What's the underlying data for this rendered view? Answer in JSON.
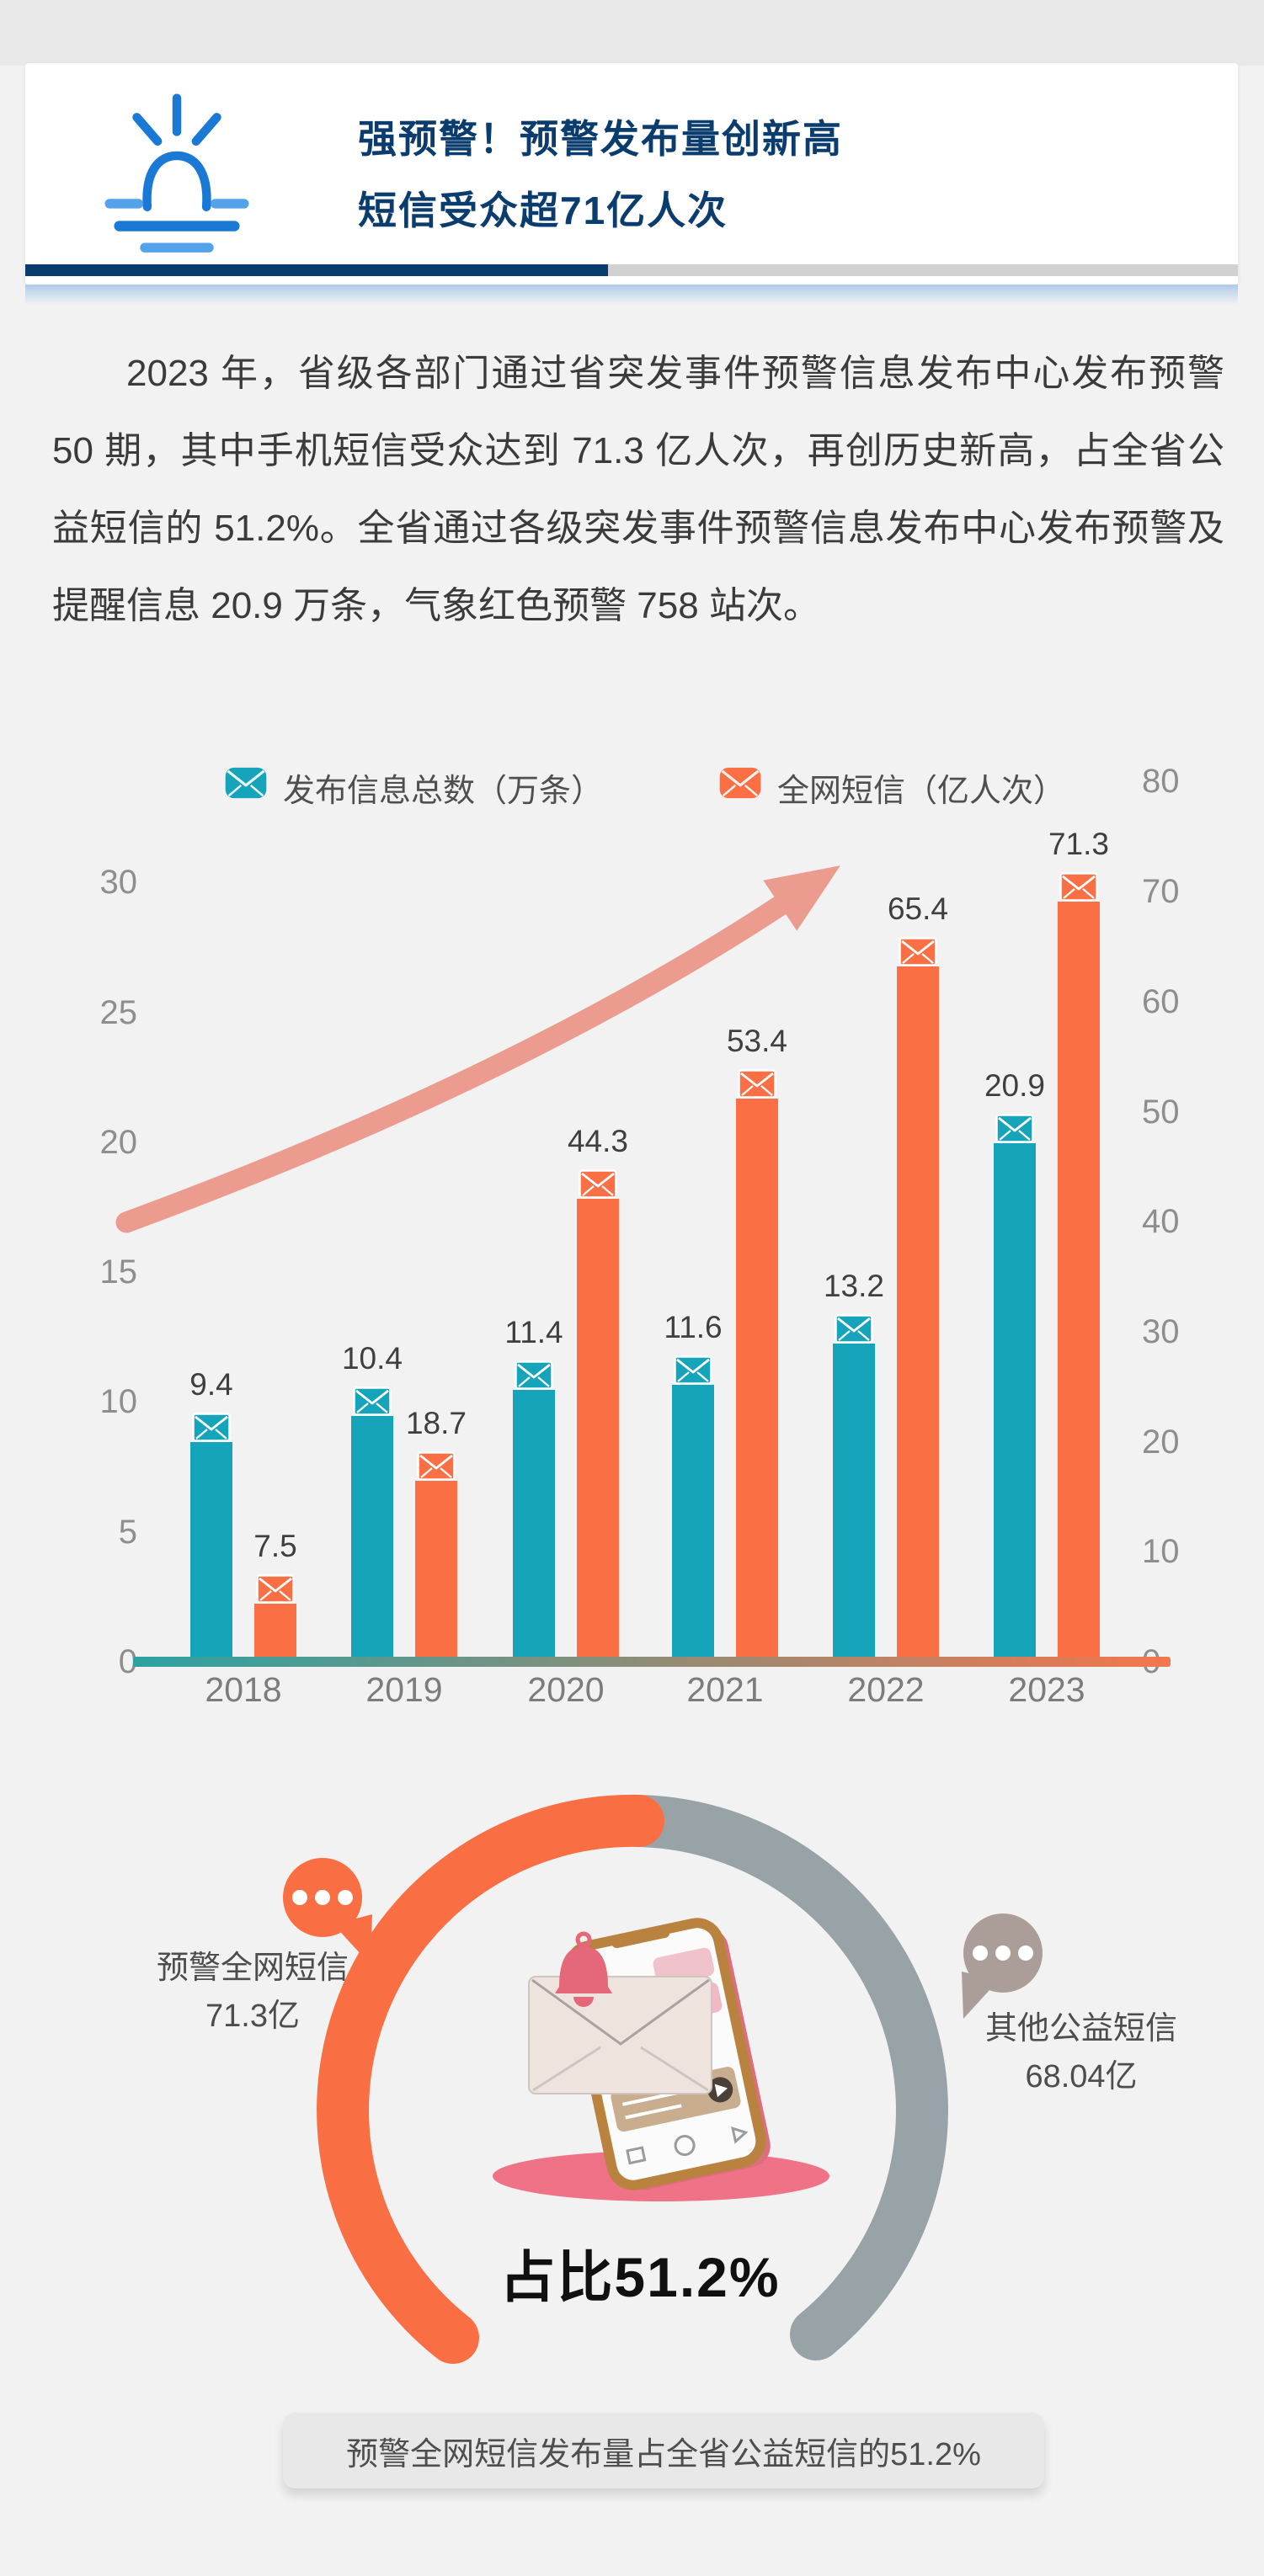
{
  "header": {
    "title_line1": "强预警！预警发布量创新高",
    "title_line2": "短信受众超71亿人次",
    "accent_navy": "#0A3C6E",
    "icon": "sunrise-icon"
  },
  "intro": {
    "text": "2023 年，省级各部门通过省突发事件预警信息发布中心发布预警 50 期，其中手机短信受众达到 71.3 亿人次，再创历史新高，占全省公益短信的 51.2%。全省通过各级突发事件预警信息发布中心发布预警及提醒信息 20.9 万条，气象红色预警 758 站次。"
  },
  "chart_data": {
    "type": "bar",
    "categories": [
      "2018",
      "2019",
      "2020",
      "2021",
      "2022",
      "2023"
    ],
    "series": [
      {
        "name": "发布信息总数（万条）",
        "axis": "left",
        "color": "#16A4BA",
        "icon": "envelope-icon",
        "values": [
          9.4,
          10.4,
          11.4,
          11.6,
          13.2,
          20.9
        ]
      },
      {
        "name": "全网短信（亿人次）",
        "axis": "right",
        "color": "#FA7044",
        "icon": "envelope-icon",
        "values": [
          7.5,
          18.7,
          44.3,
          53.4,
          65.4,
          71.3
        ]
      }
    ],
    "left_axis_ticks": [
      0,
      5,
      10,
      15,
      20,
      25,
      30
    ],
    "right_axis_ticks": [
      0,
      10,
      20,
      30,
      40,
      50,
      60,
      70,
      80
    ],
    "left_axis_range": [
      0,
      32
    ],
    "right_axis_range": [
      0,
      83
    ],
    "legend_position": "top",
    "grid": false,
    "trend_arrow": true,
    "trend_arrow_color": "#EC9C8E",
    "baseline_gradient": [
      "#2BA3A2",
      "#F4764C"
    ]
  },
  "donut": {
    "percent_label": "占比51.2%",
    "orange_value": 71.3,
    "gray_value": 68.04,
    "orange_label_line1": "预警全网短信",
    "orange_label_line2": "71.3亿",
    "gray_label_line1": "其他公益短信",
    "gray_label_line2": "68.04亿",
    "orange": "#F96F43",
    "gray": "#97A3A6",
    "bubble_taupe": "#AB9E99"
  },
  "caption": {
    "text": "预警全网短信发布量占全省公益短信的51.2%"
  }
}
